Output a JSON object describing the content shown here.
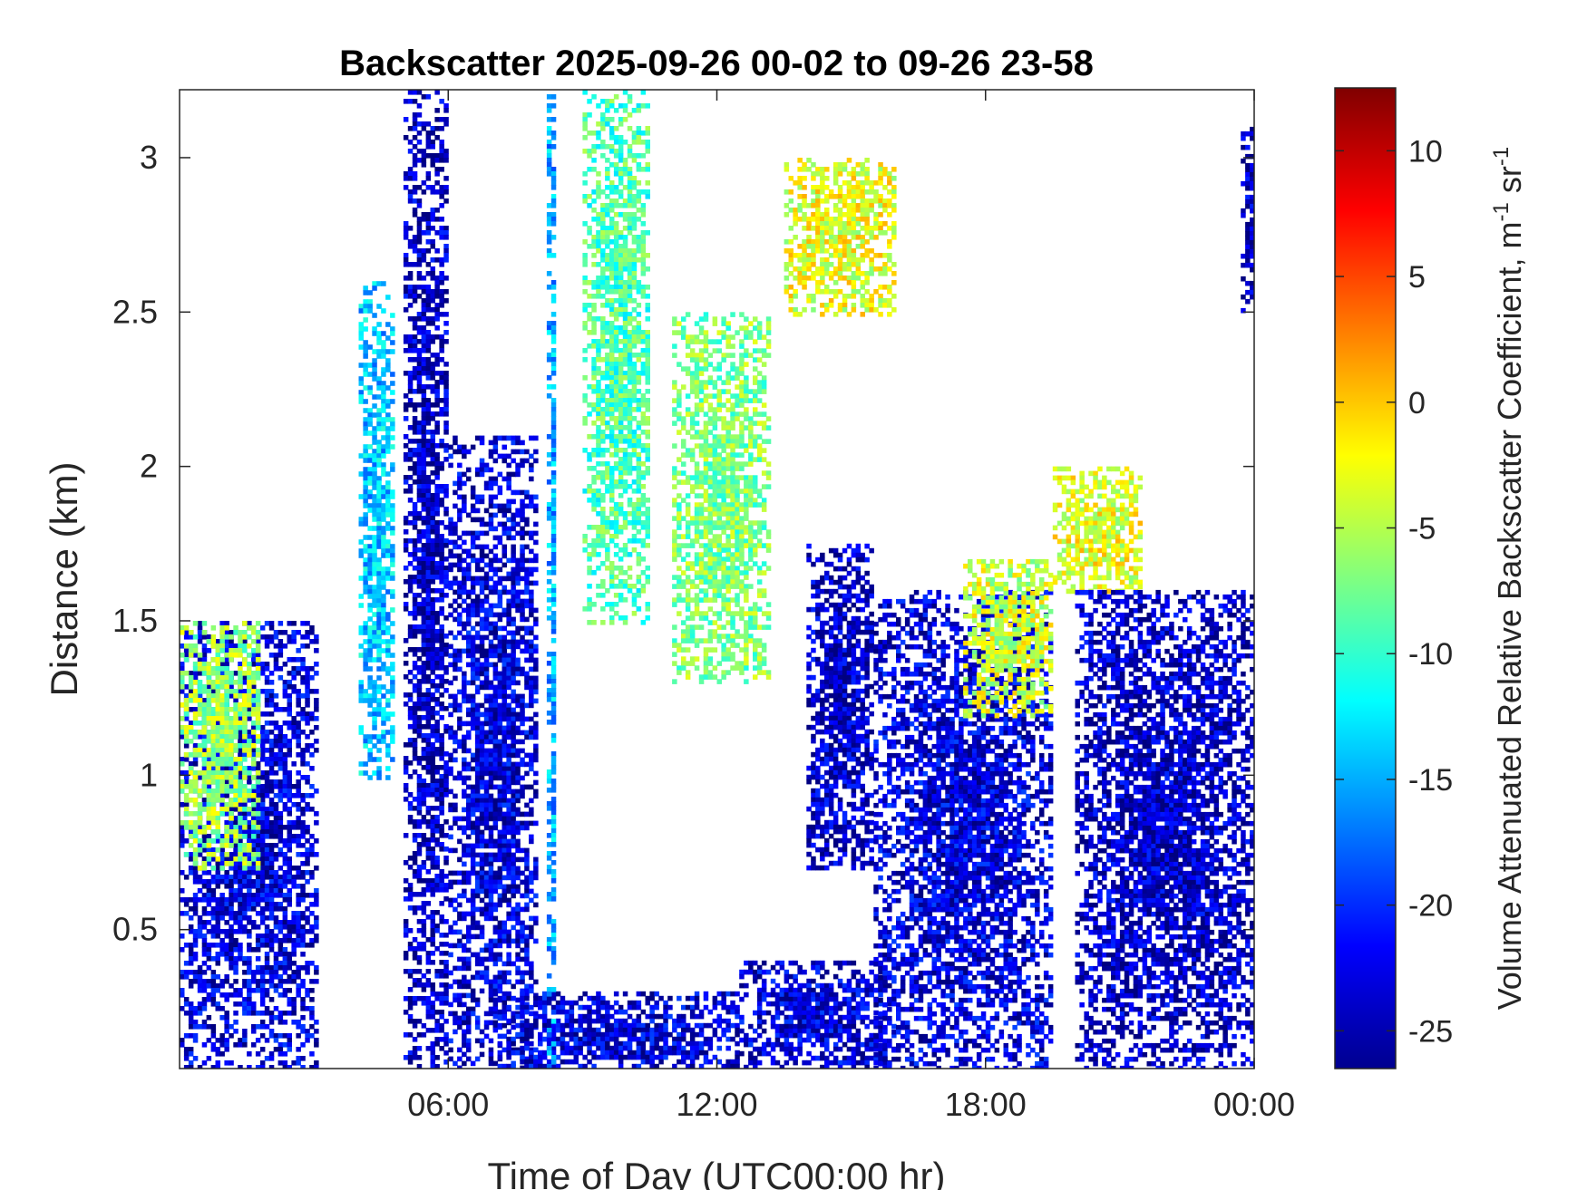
{
  "chart_data": {
    "type": "heatmap",
    "title": "Backscatter 2025-09-26 00-02 to 09-26 23-58",
    "xlabel": "Time of Day (UTC00:00 hr)",
    "ylabel": "Distance (km)",
    "xlim_hours": [
      0,
      24
    ],
    "ylim_km": [
      0.05,
      3.22
    ],
    "x_ticks": [
      {
        "value": 6,
        "label": "06:00"
      },
      {
        "value": 12,
        "label": "12:00"
      },
      {
        "value": 18,
        "label": "18:00"
      },
      {
        "value": 24,
        "label": "00:00"
      }
    ],
    "y_ticks": [
      {
        "value": 0.5,
        "label": "0.5"
      },
      {
        "value": 1,
        "label": "1"
      },
      {
        "value": 1.5,
        "label": "1.5"
      },
      {
        "value": 2,
        "label": "2"
      },
      {
        "value": 2.5,
        "label": "2.5"
      },
      {
        "value": 3,
        "label": "3"
      }
    ],
    "colorbar": {
      "label": "Volume Attenuated Relative Backscatter Coefficient, m",
      "label_sup1": "-1",
      "label_mid": " sr",
      "label_sup2": "-1",
      "range": [
        -26.5,
        12.5
      ],
      "colormap": "jet",
      "ticks": [
        {
          "value": 10,
          "label": "10"
        },
        {
          "value": 5,
          "label": "5"
        },
        {
          "value": 0,
          "label": "0"
        },
        {
          "value": -5,
          "label": "-5"
        },
        {
          "value": -10,
          "label": "-10"
        },
        {
          "value": -15,
          "label": "-15"
        },
        {
          "value": -20,
          "label": "-20"
        },
        {
          "value": -25,
          "label": "-25"
        }
      ]
    },
    "grid": false,
    "features": [
      {
        "t0": 0.0,
        "t1": 3.1,
        "z0": 0.05,
        "z1": 1.5,
        "value": -23
      },
      {
        "t0": 0.0,
        "t1": 1.8,
        "z0": 0.7,
        "z1": 1.5,
        "value": -6
      },
      {
        "t0": 4.0,
        "t1": 4.8,
        "z0": 1.0,
        "z1": 2.6,
        "value": -14
      },
      {
        "t0": 5.0,
        "t1": 6.0,
        "z0": 0.05,
        "z1": 3.22,
        "value": -24
      },
      {
        "t0": 6.0,
        "t1": 8.0,
        "z0": 0.05,
        "z1": 2.1,
        "value": -23
      },
      {
        "t0": 7.0,
        "t1": 12.5,
        "z0": 0.05,
        "z1": 0.3,
        "value": -23
      },
      {
        "t0": 8.2,
        "t1": 8.4,
        "z0": 0.05,
        "z1": 3.22,
        "value": -15
      },
      {
        "t0": 9.0,
        "t1": 10.5,
        "z0": 1.5,
        "z1": 3.22,
        "value": -9
      },
      {
        "t0": 11.0,
        "t1": 13.2,
        "z0": 1.3,
        "z1": 2.5,
        "value": -7
      },
      {
        "t0": 13.5,
        "t1": 16.0,
        "z0": 2.5,
        "z1": 3.0,
        "value": -3
      },
      {
        "t0": 12.5,
        "t1": 16.0,
        "z0": 0.05,
        "z1": 0.4,
        "value": -23
      },
      {
        "t0": 14.0,
        "t1": 15.5,
        "z0": 0.7,
        "z1": 1.75,
        "value": -24
      },
      {
        "t0": 15.5,
        "t1": 19.5,
        "z0": 0.05,
        "z1": 1.6,
        "value": -23
      },
      {
        "t0": 17.5,
        "t1": 19.5,
        "z0": 1.2,
        "z1": 1.7,
        "value": -4
      },
      {
        "t0": 19.5,
        "t1": 21.5,
        "z0": 1.6,
        "z1": 2.0,
        "value": -3
      },
      {
        "t0": 20.0,
        "t1": 24.0,
        "z0": 0.05,
        "z1": 1.6,
        "value": -24
      },
      {
        "t0": 23.7,
        "t1": 24.0,
        "z0": 2.5,
        "z1": 3.1,
        "value": -24
      }
    ]
  }
}
